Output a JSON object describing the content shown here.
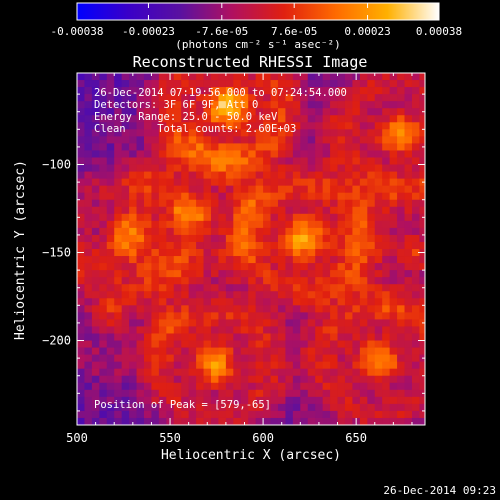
{
  "colorbar": {
    "ticks": [
      "-0.00038",
      "-0.00023",
      "-7.6e-05",
      "7.6e-05",
      "0.00023",
      "0.00038"
    ],
    "tick_values": [
      -0.00038,
      -0.00023,
      -7.6e-05,
      7.6e-05,
      0.00023,
      0.00038
    ],
    "range": [
      -0.00038,
      0.00038
    ],
    "units": "(photons cm⁻² s⁻¹ asec⁻²)",
    "colors": [
      "#0000ff",
      "#3a00c8",
      "#5a10a0",
      "#b01060",
      "#e02010",
      "#ff6a00",
      "#ffb000",
      "#ffffff"
    ]
  },
  "chart_data": {
    "type": "heatmap",
    "title": "Reconstructed RHESSI Image",
    "xlabel": "Heliocentric X (arcsec)",
    "ylabel": "Heliocentric Y (arcsec)",
    "xlim": [
      500,
      687
    ],
    "ylim": [
      -248,
      -48
    ],
    "x_ticks": [
      500,
      550,
      600,
      650
    ],
    "y_ticks": [
      -100,
      -150,
      -200
    ],
    "grid": false,
    "annotations": [
      "26-Dec-2014 07:19:56.000 to 07:24:54.000",
      "Detectors: 3F 6F 9F, Att 0",
      "Energy Range: 25.0 - 50.0 keV",
      "Clean     Total counts: 2.60E+03"
    ],
    "peak_note": "Position of Peak = [579,-65]",
    "peak": [
      579,
      -65
    ],
    "sources": [
      {
        "x": 579,
        "y": -65,
        "amp": 1.0
      },
      {
        "x": 672,
        "y": -80,
        "amp": 0.8
      },
      {
        "x": 620,
        "y": -140,
        "amp": 0.85
      },
      {
        "x": 525,
        "y": -138,
        "amp": 0.55
      },
      {
        "x": 560,
        "y": -125,
        "amp": 0.5
      },
      {
        "x": 572,
        "y": -212,
        "amp": 0.8
      },
      {
        "x": 660,
        "y": -210,
        "amp": 0.8
      },
      {
        "x": 680,
        "y": -148,
        "amp": 0.4
      },
      {
        "x": 515,
        "y": -182,
        "amp": 0.35
      }
    ]
  },
  "footer": {
    "timestamp": "26-Dec-2014 09:23"
  }
}
